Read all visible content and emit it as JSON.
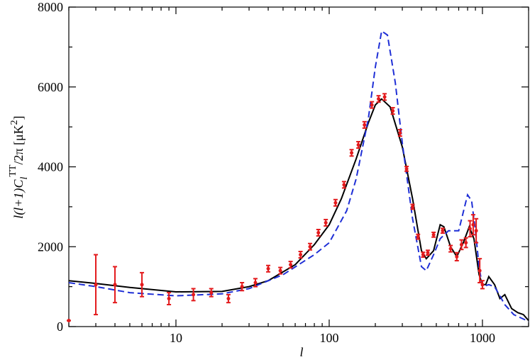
{
  "chart_data": {
    "type": "line",
    "xlabel": "l",
    "ylabel": {
      "main": "l(l+1)C",
      "sub": "l",
      "sup": "TT",
      "rest": "/2π [μK",
      "sup2": "2",
      "end": "]"
    },
    "xscale": "log",
    "xlim": [
      2,
      2000
    ],
    "ylim": [
      0,
      8000
    ],
    "xticks": [
      10,
      100,
      1000
    ],
    "xminor": [
      2,
      3,
      4,
      5,
      6,
      7,
      8,
      9,
      20,
      30,
      40,
      50,
      60,
      70,
      80,
      90,
      200,
      300,
      400,
      500,
      600,
      700,
      800,
      900,
      2000
    ],
    "yticks": [
      0,
      2000,
      4000,
      6000,
      8000
    ],
    "yminor": [
      1000,
      3000,
      5000,
      7000
    ],
    "series": [
      {
        "color": "#000000",
        "dash": false,
        "x": [
          2,
          3,
          5,
          10,
          20,
          30,
          40,
          60,
          80,
          100,
          120,
          150,
          180,
          200,
          220,
          250,
          300,
          350,
          400,
          430,
          480,
          530,
          560,
          620,
          680,
          750,
          820,
          880,
          950,
          1000,
          1050,
          1100,
          1200,
          1300,
          1400,
          1550,
          1700,
          1850,
          2000
        ],
        "values": [
          1150,
          1080,
          980,
          870,
          880,
          1000,
          1150,
          1550,
          2050,
          2550,
          3200,
          4200,
          5100,
          5550,
          5700,
          5500,
          4500,
          3200,
          1900,
          1700,
          1900,
          2550,
          2500,
          2000,
          1750,
          2100,
          2500,
          2200,
          1300,
          1050,
          1050,
          1250,
          1050,
          700,
          800,
          450,
          350,
          300,
          150
        ]
      },
      {
        "color": "#1f2fd6",
        "dash": true,
        "x": [
          2,
          3,
          5,
          10,
          20,
          30,
          50,
          80,
          100,
          130,
          150,
          180,
          200,
          220,
          240,
          270,
          300,
          350,
          400,
          430,
          480,
          530,
          600,
          700,
          800,
          850,
          900,
          950,
          1000,
          1100,
          1200,
          1400,
          1600,
          2000
        ],
        "values": [
          1100,
          1000,
          850,
          770,
          820,
          950,
          1300,
          1800,
          2100,
          2900,
          3700,
          5200,
          6500,
          7400,
          7300,
          6100,
          4600,
          2700,
          1500,
          1400,
          1800,
          2200,
          2400,
          2400,
          3300,
          3150,
          2400,
          1500,
          1000,
          1050,
          1000,
          550,
          300,
          130
        ]
      }
    ],
    "points": {
      "color": "#e31a1c",
      "x": [
        2,
        3,
        4,
        6,
        9,
        13,
        17,
        22,
        27,
        33,
        40,
        48,
        56,
        65,
        75,
        85,
        95,
        110,
        125,
        140,
        155,
        170,
        190,
        210,
        230,
        260,
        290,
        320,
        350,
        380,
        410,
        440,
        480,
        550,
        620,
        680,
        730,
        780,
        830,
        870,
        910,
        960,
        1000
      ],
      "values": [
        150,
        1050,
        1050,
        1050,
        700,
        800,
        850,
        700,
        1000,
        1100,
        1450,
        1400,
        1550,
        1800,
        2000,
        2350,
        2600,
        3100,
        3550,
        4350,
        4550,
        5050,
        5550,
        5700,
        5750,
        5400,
        4850,
        3950,
        3000,
        2250,
        1800,
        1850,
        2300,
        2400,
        1950,
        1750,
        2050,
        2100,
        2450,
        2550,
        2400,
        1400,
        1050
      ],
      "errors": [
        0,
        750,
        450,
        300,
        150,
        150,
        100,
        100,
        100,
        100,
        80,
        80,
        80,
        80,
        80,
        80,
        80,
        80,
        80,
        80,
        80,
        80,
        80,
        80,
        80,
        80,
        80,
        60,
        60,
        60,
        60,
        60,
        60,
        60,
        80,
        100,
        120,
        120,
        200,
        250,
        300,
        300,
        100
      ]
    }
  }
}
